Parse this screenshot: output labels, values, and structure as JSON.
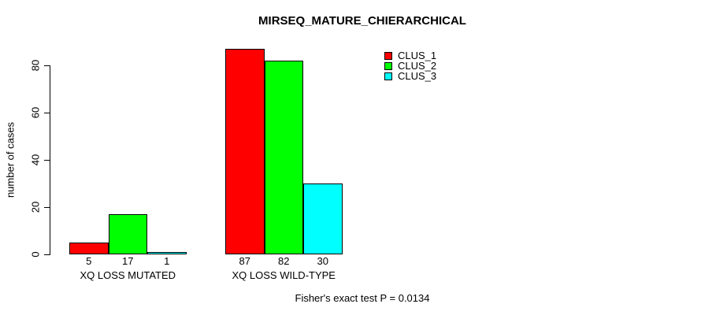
{
  "chart_data": {
    "type": "bar",
    "title": "MIRSEQ_MATURE_CHIERARCHICAL",
    "ylabel": "number of cases",
    "xlabel": "",
    "categories": [
      "XQ LOSS MUTATED",
      "XQ LOSS WILD-TYPE"
    ],
    "series": [
      {
        "name": "CLUS_1",
        "color": "#ff0000",
        "values": [
          5,
          87
        ]
      },
      {
        "name": "CLUS_2",
        "color": "#00ff00",
        "values": [
          17,
          82
        ]
      },
      {
        "name": "CLUS_3",
        "color": "#00ffff",
        "values": [
          1,
          30
        ]
      }
    ],
    "bar_value_labels": [
      [
        "5",
        "17",
        "1"
      ],
      [
        "87",
        "82",
        "30"
      ]
    ],
    "yticks": [
      "0",
      "20",
      "40",
      "60",
      "80"
    ],
    "ytick_values": [
      0,
      20,
      40,
      60,
      80
    ],
    "ylim": [
      0,
      87
    ],
    "grid": false,
    "legend_position": "top-right",
    "annotation": "Fisher's exact test P = 0.0134"
  },
  "colors": {
    "background": "#ffffff",
    "axis": "#000000",
    "bar_border": "#000000",
    "text": "#000000"
  }
}
